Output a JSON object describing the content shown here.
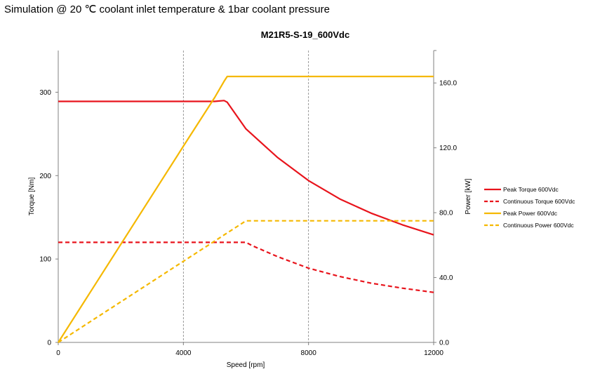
{
  "caption": "Simulation @ 20 ℃ coolant inlet temperature & 1bar coolant pressure",
  "chart_data": {
    "type": "line",
    "title": "M21R5-S-19_600Vdc",
    "xlabel": "Speed [rpm]",
    "ylabel": "Torque [Nm]",
    "y2label": "Power [kW]",
    "xlim": [
      0,
      12000
    ],
    "ylim": [
      0,
      350
    ],
    "y2lim": [
      0,
      180
    ],
    "x_ticks": [
      "0",
      "4000",
      "8000",
      "12000"
    ],
    "y_ticks": [
      "0",
      "100",
      "200",
      "300"
    ],
    "y2_ticks": [
      "0.0",
      "40.0",
      "80.0",
      "120.0",
      "160.0"
    ],
    "grid": "vertical dashed at x=4000 and x=8000",
    "legend_position": "right",
    "series": [
      {
        "name": "Peak Torque 600Vdc",
        "axis": "left",
        "color": "#e8141c",
        "style": "solid",
        "x": [
          0,
          4000,
          5000,
          5300,
          5400,
          6000,
          7000,
          8000,
          9000,
          10000,
          11000,
          12000
        ],
        "y": [
          289,
          289,
          289,
          290,
          288,
          256,
          222,
          194,
          172,
          155,
          141,
          129
        ]
      },
      {
        "name": "Continuous Torque 600Vdc",
        "axis": "left",
        "color": "#e8141c",
        "style": "dashed",
        "x": [
          0,
          4000,
          6000,
          6200,
          7000,
          8000,
          9000,
          10000,
          11000,
          12000
        ],
        "y": [
          120,
          120,
          120,
          116,
          103,
          89,
          79,
          71,
          65,
          60
        ]
      },
      {
        "name": "Peak Power 600Vdc",
        "axis": "right",
        "color": "#f5b800",
        "style": "solid",
        "x": [
          0,
          4000,
          5000,
          5300,
          5400,
          5600,
          6000,
          8000,
          10000,
          12000
        ],
        "y": [
          0,
          121,
          151,
          161,
          164,
          164,
          164,
          164,
          164,
          164
        ]
      },
      {
        "name": "Continuous Power 600Vdc",
        "axis": "right",
        "color": "#f5b800",
        "style": "dashed",
        "x": [
          0,
          4000,
          6000,
          8000,
          10000,
          12000
        ],
        "y": [
          0,
          50,
          75,
          75,
          75,
          75
        ]
      }
    ]
  }
}
